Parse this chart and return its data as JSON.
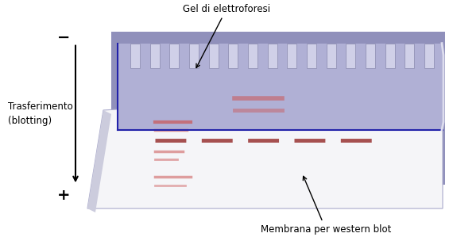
{
  "bg_color": "#ffffff",
  "fig_width": 5.7,
  "fig_height": 2.99,
  "dpi": 100,
  "gel_label": "Gel di elettroforesi",
  "membrane_label": "Membrana per western blot",
  "transfer_label": "Trasferimento\n(blotting)",
  "minus_label": "−",
  "plus_label": "+",
  "purple_bg_color": "#9090bb",
  "gel_top_color": "#a8a8cc",
  "gel_side_color": "#7070aa",
  "membrane_top_color": "#f0f0f8",
  "membrane_side_color": "#ccccdd",
  "comb_color": "#c8c8e8",
  "band_red": "#cc5555",
  "band_dark_red": "#993333"
}
